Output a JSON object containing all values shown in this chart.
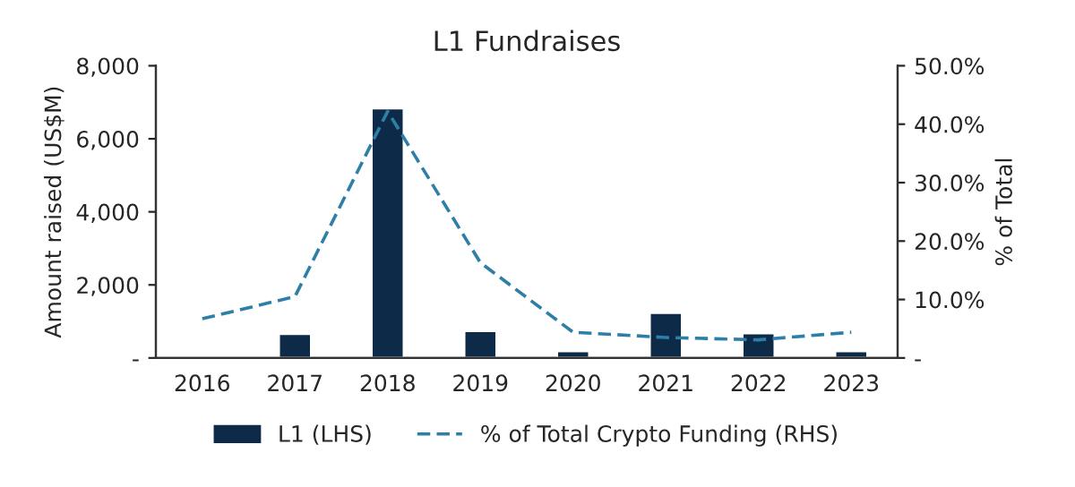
{
  "chart_data": {
    "type": "bar",
    "title": "L1 Fundraises",
    "ylabel": "Amount raised (US$M)",
    "y2label": "% of Total",
    "categories": [
      "2016",
      "2017",
      "2018",
      "2019",
      "2020",
      "2021",
      "2022",
      "2023"
    ],
    "series": [
      {
        "name": "L1 (LHS)",
        "color": "#0d2a48",
        "values": [
          50,
          660,
          6840,
          740,
          190,
          1240,
          680,
          190
        ]
      },
      {
        "name": "% of Total Crypto Funding (RHS)",
        "type": "line",
        "axis": "y2",
        "line_style": "dashed",
        "color": "#2e7fa8",
        "values": [
          6.7,
          10.5,
          42.2,
          16.3,
          4.4,
          3.5,
          3.1,
          4.4
        ]
      }
    ],
    "ylim": [
      0,
      8000
    ],
    "yticks": [
      {
        "value": 0,
        "label": "-"
      },
      {
        "value": 2000,
        "label": "2,000"
      },
      {
        "value": 4000,
        "label": "4,000"
      },
      {
        "value": 6000,
        "label": "6,000"
      },
      {
        "value": 8000,
        "label": "8,000"
      }
    ],
    "y2lim": [
      0,
      50
    ],
    "y2ticks": [
      {
        "value": 0,
        "label": "-"
      },
      {
        "value": 10,
        "label": "10.0%"
      },
      {
        "value": 20,
        "label": "20.0%"
      },
      {
        "value": 30,
        "label": "30.0%"
      },
      {
        "value": 40,
        "label": "40.0%"
      },
      {
        "value": 50,
        "label": "50.0%"
      }
    ],
    "grid": false,
    "legend": "bottom"
  }
}
